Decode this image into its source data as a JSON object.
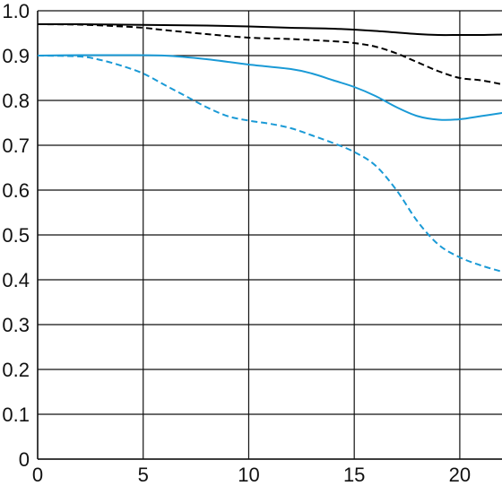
{
  "chart_data": {
    "type": "line",
    "title": "",
    "xlabel": "",
    "ylabel": "",
    "xlim": [
      0,
      22
    ],
    "ylim": [
      0,
      1.0
    ],
    "grid": true,
    "x_ticks": [
      0,
      5,
      10,
      15,
      20
    ],
    "x_tick_labels": [
      "0",
      "5",
      "10",
      "15",
      "20"
    ],
    "y_ticks": [
      0,
      0.1,
      0.2,
      0.3,
      0.4,
      0.5,
      0.6,
      0.7,
      0.8,
      0.9,
      1.0
    ],
    "y_tick_labels": [
      "0",
      "0.1",
      "0.2",
      "0.3",
      "0.4",
      "0.5",
      "0.6",
      "0.7",
      "0.8",
      "0.9",
      "1.0"
    ],
    "series": [
      {
        "color": "#000000",
        "dash": "solid",
        "x": [
          0,
          2,
          4,
          6,
          8,
          10,
          12,
          14,
          16,
          18,
          19,
          20,
          21,
          22
        ],
        "values": [
          0.97,
          0.97,
          0.969,
          0.968,
          0.967,
          0.965,
          0.962,
          0.96,
          0.955,
          0.948,
          0.946,
          0.946,
          0.946,
          0.947
        ]
      },
      {
        "color": "#000000",
        "dash": "dashed",
        "x": [
          0,
          2,
          4,
          5,
          6,
          8,
          10,
          12,
          14,
          15,
          16,
          17,
          18,
          19,
          20,
          21,
          22
        ],
        "values": [
          0.97,
          0.969,
          0.965,
          0.962,
          0.957,
          0.948,
          0.94,
          0.937,
          0.932,
          0.928,
          0.92,
          0.905,
          0.885,
          0.865,
          0.85,
          0.845,
          0.836
        ]
      },
      {
        "color": "#1a9ad6",
        "dash": "solid",
        "x": [
          0,
          2,
          4,
          6,
          8,
          10,
          12,
          13,
          14,
          15,
          16,
          17,
          18,
          19,
          20,
          21,
          22
        ],
        "values": [
          0.9,
          0.901,
          0.901,
          0.9,
          0.892,
          0.88,
          0.87,
          0.86,
          0.845,
          0.83,
          0.81,
          0.785,
          0.765,
          0.757,
          0.758,
          0.765,
          0.772
        ]
      },
      {
        "color": "#1a9ad6",
        "dash": "dashed",
        "x": [
          0,
          2,
          3,
          4,
          5,
          6,
          7,
          8,
          9,
          10,
          11,
          12,
          13,
          14,
          15,
          16,
          17,
          18,
          19,
          20,
          21,
          22
        ],
        "values": [
          0.9,
          0.898,
          0.89,
          0.877,
          0.86,
          0.835,
          0.81,
          0.785,
          0.765,
          0.755,
          0.748,
          0.738,
          0.722,
          0.705,
          0.685,
          0.655,
          0.6,
          0.53,
          0.478,
          0.45,
          0.432,
          0.418
        ]
      }
    ]
  }
}
